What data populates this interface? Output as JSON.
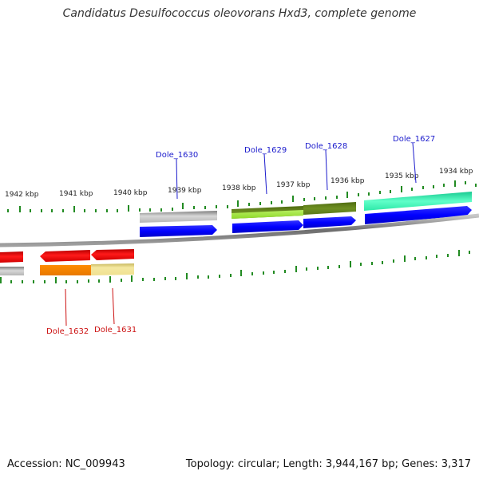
{
  "title": "Candidatus Desulfococcus oleovorans Hxd3, complete genome",
  "accession": "Accession: NC_009943",
  "summary": "Topology: circular; Length: 3,944,167 bp; Genes: 3,317",
  "ticks": [
    "1942 kbp",
    "1941 kbp",
    "1940 kbp",
    "1939 kbp",
    "1938 kbp",
    "1937 kbp",
    "1936 kbp",
    "1935 kbp",
    "1934 kbp"
  ],
  "forward_genes": [
    "Dole_1630",
    "Dole_1629",
    "Dole_1628",
    "Dole_1627"
  ],
  "reverse_genes": [
    "Dole_1632",
    "Dole_1631"
  ],
  "colors": {
    "forward_label": "#1a1acc",
    "reverse_label": "#cc1111",
    "cds": "#0000ee",
    "rev_cds": "#ee0000",
    "tick": "#228b22",
    "backbone": "#888888"
  }
}
